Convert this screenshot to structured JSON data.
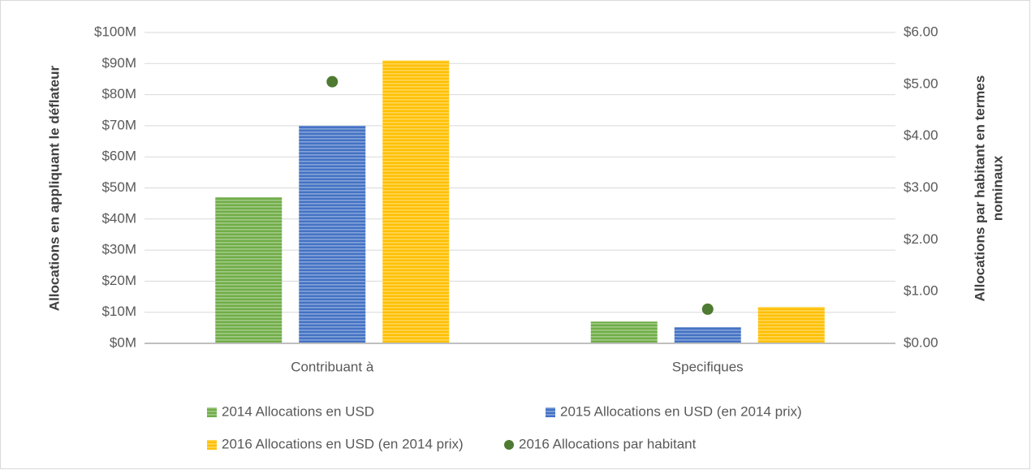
{
  "chart_data": {
    "type": "bar",
    "categories": [
      "Contribuant à",
      "Specifiques"
    ],
    "series": [
      {
        "name": "2014 Allocations en USD",
        "color": "#70ad47",
        "values": [
          47,
          7
        ]
      },
      {
        "name": "2015 Allocations en USD (en 2014 prix)",
        "color": "#4472c4",
        "values": [
          70,
          5.2
        ]
      },
      {
        "name": "2016 Allocations en USD (en 2014 prix)",
        "color": "#ffc000",
        "values": [
          91,
          11.7
        ]
      },
      {
        "name": "2016 Allocations par habitant",
        "color": "#4e7a32",
        "type": "scatter",
        "axis": "y2",
        "values": [
          5.05,
          0.66
        ]
      }
    ],
    "ylabel": "Allocations en appliquant le déflateur",
    "y2label": [
      "Allocations par habitant en termes",
      "nominaux"
    ],
    "ylim": [
      0,
      100
    ],
    "yticks": [
      {
        "value": 0,
        "label": "$0M"
      },
      {
        "value": 10,
        "label": "$10M"
      },
      {
        "value": 20,
        "label": "$20M"
      },
      {
        "value": 30,
        "label": "$30M"
      },
      {
        "value": 40,
        "label": "$40M"
      },
      {
        "value": 50,
        "label": "$50M"
      },
      {
        "value": 60,
        "label": "$60M"
      },
      {
        "value": 70,
        "label": "$70M"
      },
      {
        "value": 80,
        "label": "$80M"
      },
      {
        "value": 90,
        "label": "$90M"
      },
      {
        "value": 100,
        "label": "$100M"
      }
    ],
    "y2lim": [
      0,
      6
    ],
    "y2ticks": [
      {
        "value": 0,
        "label": "$0.00"
      },
      {
        "value": 1,
        "label": "$1.00"
      },
      {
        "value": 2,
        "label": "$2.00"
      },
      {
        "value": 3,
        "label": "$3.00"
      },
      {
        "value": 4,
        "label": "$4.00"
      },
      {
        "value": 5,
        "label": "$5.00"
      },
      {
        "value": 6,
        "label": "$6.00"
      }
    ],
    "grid": true,
    "legend": "bottom"
  }
}
